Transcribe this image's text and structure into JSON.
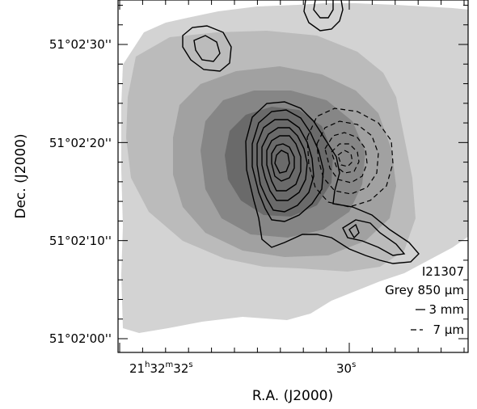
{
  "chart_data": {
    "type": "contour",
    "source_label": "I21307",
    "xlabel": "R.A. (J2000)",
    "ylabel": "Dec. (J2000)",
    "x_ticks": [
      {
        "h": "21",
        "m": "32",
        "s": "32"
      },
      {
        "h": "",
        "m": "",
        "s": "30"
      }
    ],
    "y_ticks": [
      "51°02'30''",
      "51°02'20''",
      "51°02'10''",
      "51°02'00''"
    ],
    "legend": [
      {
        "marker": "Grey",
        "label": "Grey 850 μm"
      },
      {
        "marker": "—",
        "label": "3 mm"
      },
      {
        "marker": "- -",
        "label": "7 μm"
      }
    ],
    "series": [
      {
        "name": "850 μm",
        "style": "grey-fill",
        "levels": 5,
        "peak_ra_offset_s": 1.2,
        "peak_dec_offset_arcsec": 18
      },
      {
        "name": "3 mm",
        "style": "solid-contours",
        "levels": 8,
        "peak_ra_offset_s": 1.15,
        "peak_dec_offset_arcsec": 17.5
      },
      {
        "name": "7 μm",
        "style": "dashed-contours",
        "levels": 5,
        "peak_ra_offset_s": 0.0,
        "peak_dec_offset_arcsec": 18
      }
    ],
    "colors": [
      "#d3d3d3",
      "#bbbbbb",
      "#a1a1a1",
      "#868686",
      "#6a6a6a"
    ]
  }
}
